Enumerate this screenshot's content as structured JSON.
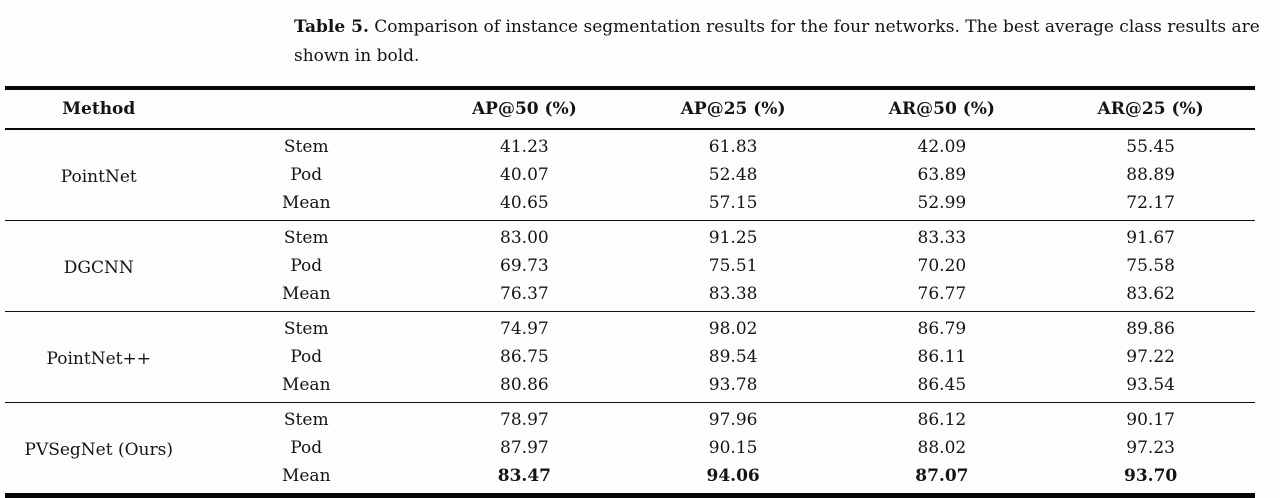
{
  "caption": {
    "label": "Table 5.",
    "text": "Comparison of instance segmentation results for the four networks. The best average class results are shown in bold."
  },
  "table": {
    "headers": [
      "Method",
      "",
      "AP@50 (%)",
      "AP@25 (%)",
      "AR@50 (%)",
      "AR@25 (%)"
    ],
    "groups": [
      {
        "method": "PointNet",
        "rows": [
          {
            "label": "Stem",
            "values": [
              "41.23",
              "61.83",
              "42.09",
              "55.45"
            ],
            "bold": false
          },
          {
            "label": "Pod",
            "values": [
              "40.07",
              "52.48",
              "63.89",
              "88.89"
            ],
            "bold": false
          },
          {
            "label": "Mean",
            "values": [
              "40.65",
              "57.15",
              "52.99",
              "72.17"
            ],
            "bold": false
          }
        ]
      },
      {
        "method": "DGCNN",
        "rows": [
          {
            "label": "Stem",
            "values": [
              "83.00",
              "91.25",
              "83.33",
              "91.67"
            ],
            "bold": false
          },
          {
            "label": "Pod",
            "values": [
              "69.73",
              "75.51",
              "70.20",
              "75.58"
            ],
            "bold": false
          },
          {
            "label": "Mean",
            "values": [
              "76.37",
              "83.38",
              "76.77",
              "83.62"
            ],
            "bold": false
          }
        ]
      },
      {
        "method": "PointNet++",
        "rows": [
          {
            "label": "Stem",
            "values": [
              "74.97",
              "98.02",
              "86.79",
              "89.86"
            ],
            "bold": false
          },
          {
            "label": "Pod",
            "values": [
              "86.75",
              "89.54",
              "86.11",
              "97.22"
            ],
            "bold": false
          },
          {
            "label": "Mean",
            "values": [
              "80.86",
              "93.78",
              "86.45",
              "93.54"
            ],
            "bold": false
          }
        ]
      },
      {
        "method": "PVSegNet (Ours)",
        "rows": [
          {
            "label": "Stem",
            "values": [
              "78.97",
              "97.96",
              "86.12",
              "90.17"
            ],
            "bold": false
          },
          {
            "label": "Pod",
            "values": [
              "87.97",
              "90.15",
              "88.02",
              "97.23"
            ],
            "bold": false
          },
          {
            "label": "Mean",
            "values": [
              "83.47",
              "94.06",
              "87.07",
              "93.70"
            ],
            "bold": true
          }
        ]
      }
    ]
  }
}
